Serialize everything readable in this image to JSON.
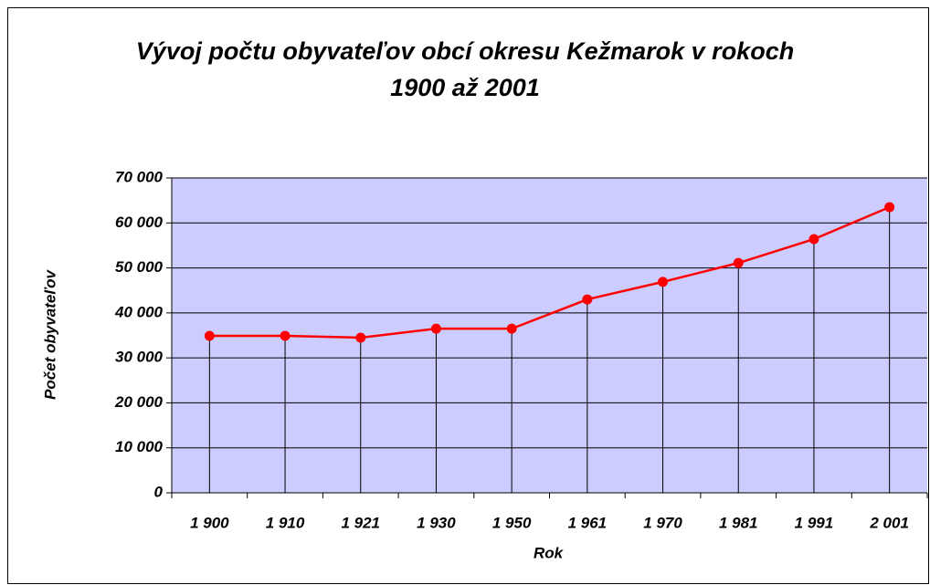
{
  "chart_data": {
    "type": "line",
    "title": "Vývoj počtu obyvateľov obcí okresu Kežmarok v rokoch 1900 až 2001",
    "x_label": "Rok",
    "y_label": "Počet obyvateľov",
    "categories": [
      "1 900",
      "1 910",
      "1 921",
      "1 930",
      "1 950",
      "1 961",
      "1 970",
      "1 981",
      "1 991",
      "2 001"
    ],
    "series": [
      {
        "name": "Počet obyvateľov",
        "color": "#ff0000",
        "values": [
          34900,
          34900,
          34500,
          36500,
          36500,
          43000,
          46900,
          51100,
          56400,
          63500
        ]
      }
    ],
    "ylim": [
      0,
      70000
    ],
    "yticks": [
      0,
      {
        "value": 10000,
        "label": "10 000"
      },
      {
        "value": 20000,
        "label": "20 000"
      },
      {
        "value": 30000,
        "label": "30 000"
      },
      {
        "value": 40000,
        "label": "40 000"
      },
      {
        "value": 50000,
        "label": "50 000"
      },
      {
        "value": 60000,
        "label": "60 000"
      },
      {
        "value": 70000,
        "label": "70 000"
      }
    ],
    "grid": true,
    "drop_lines": true,
    "plot_background": "#ccccff"
  }
}
